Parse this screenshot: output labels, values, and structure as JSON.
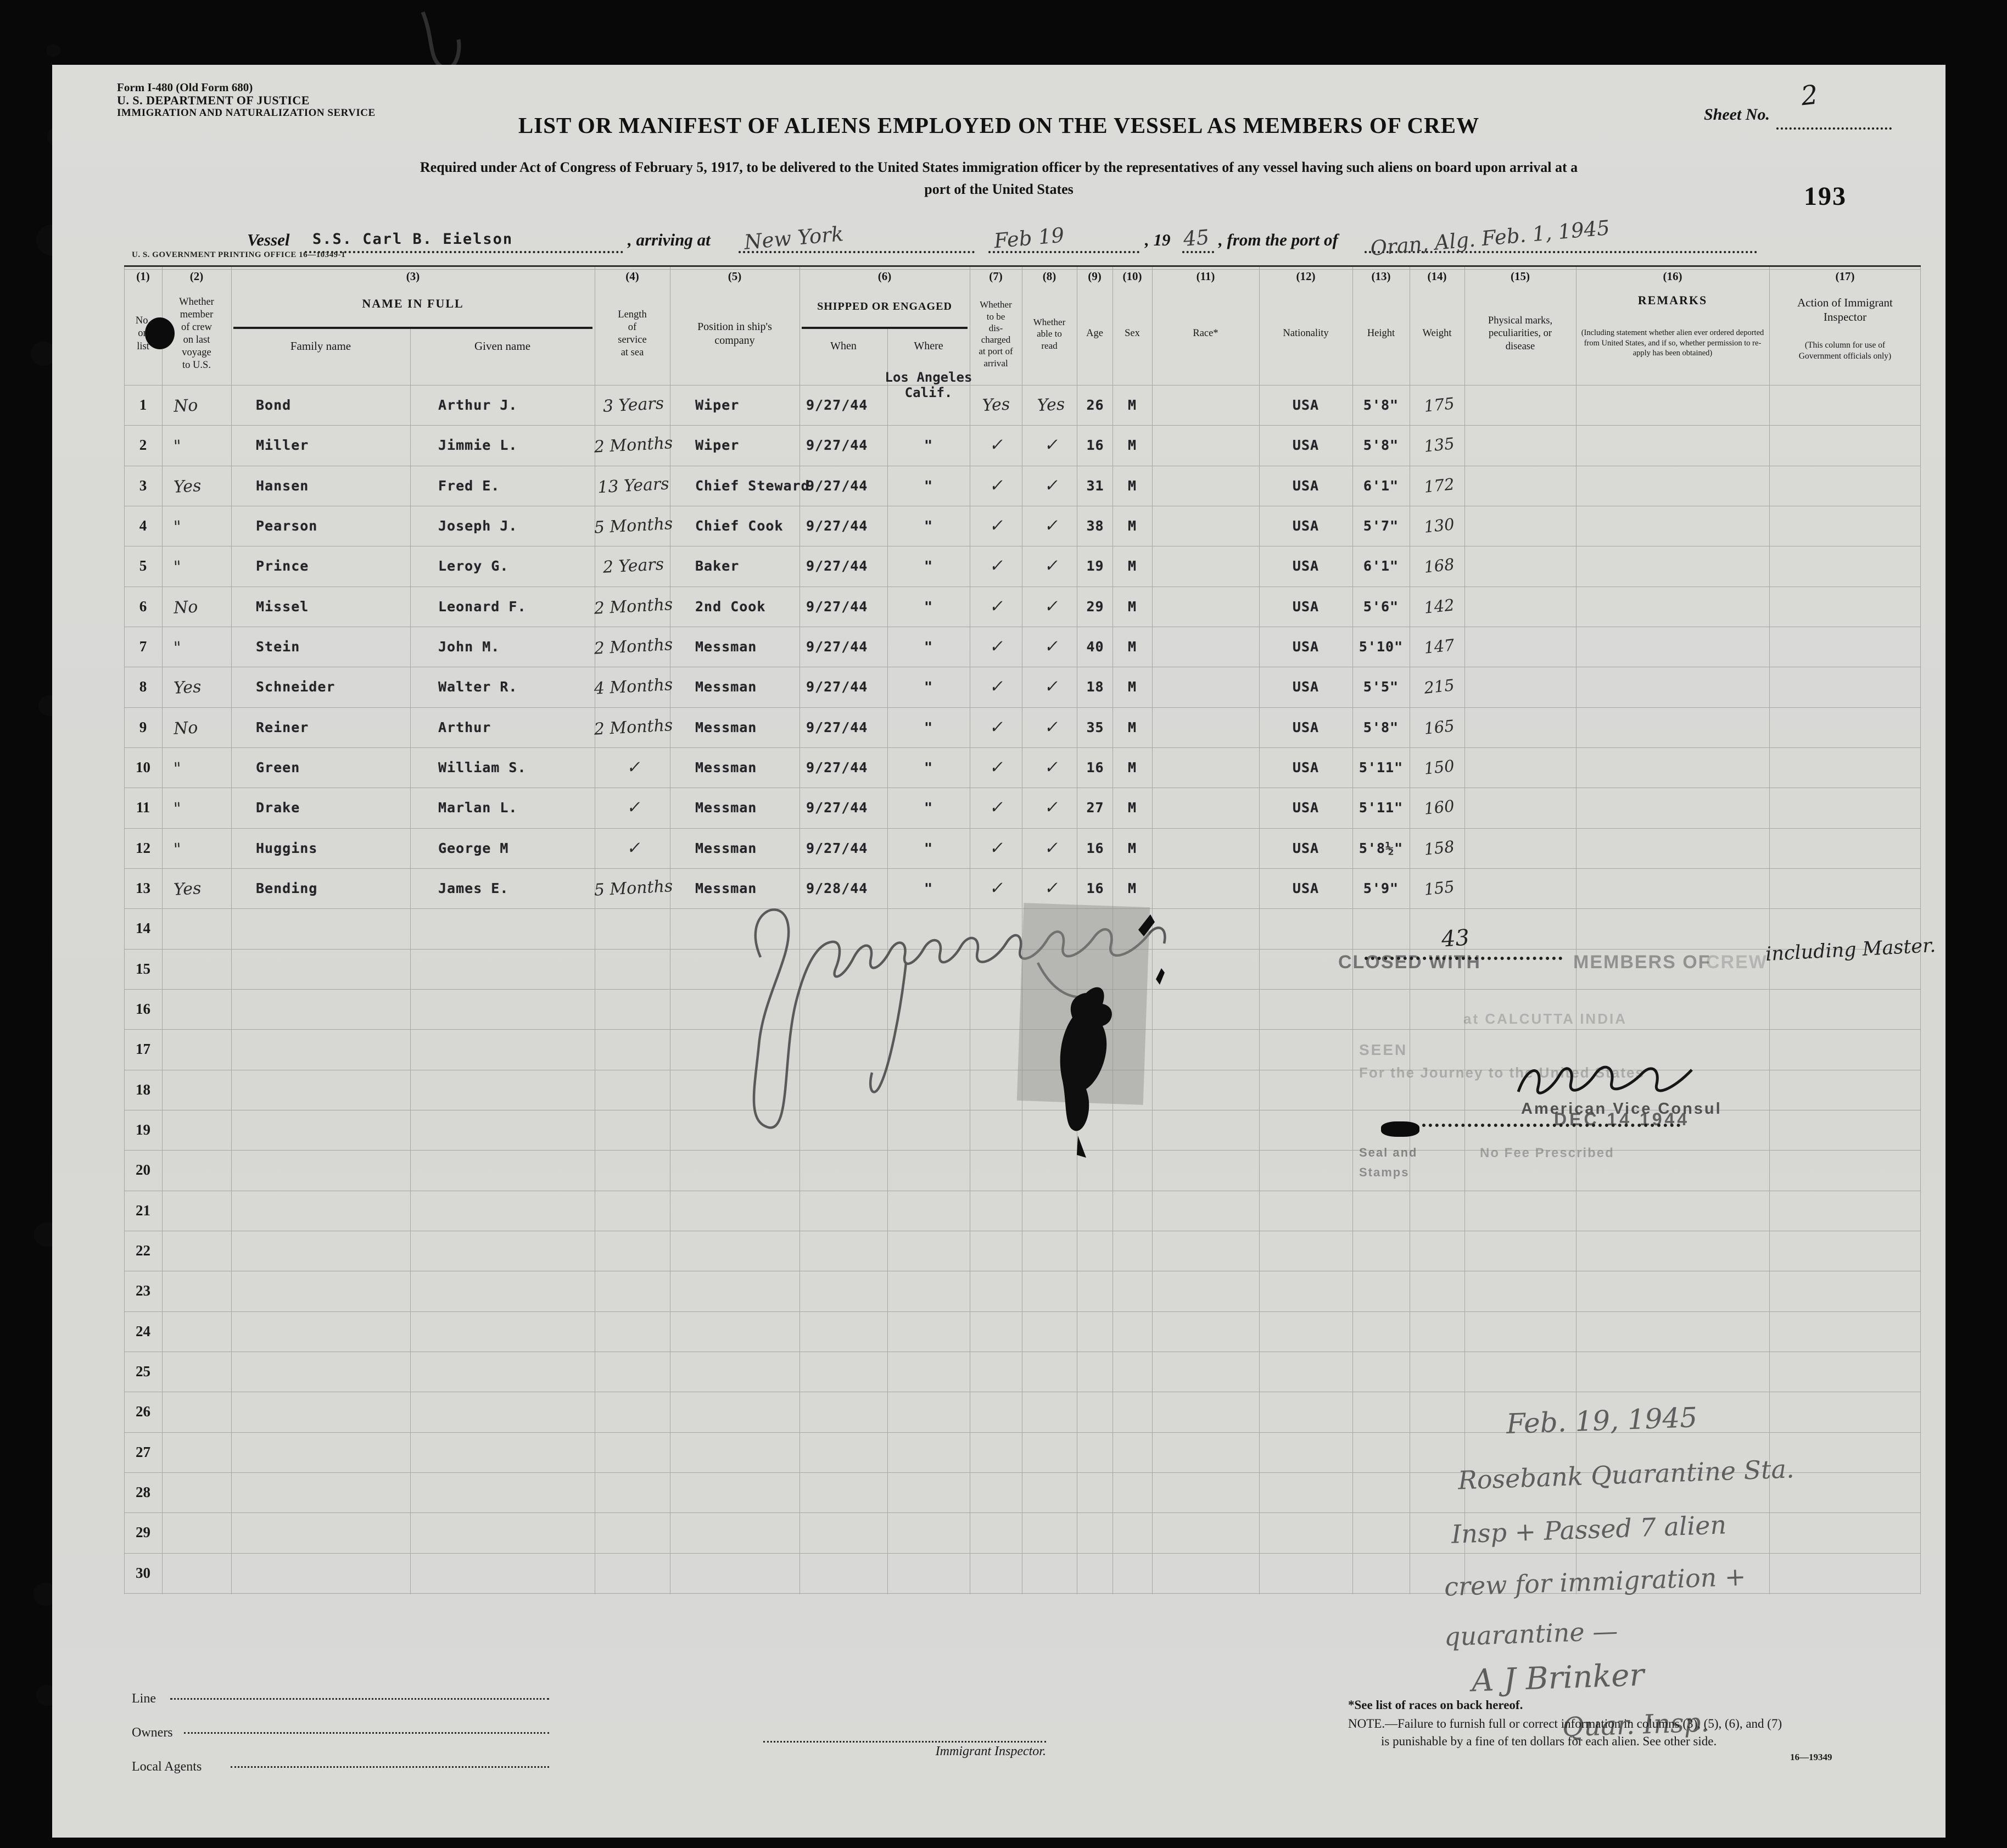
{
  "header": {
    "form_number": "Form I-480 (Old Form 680)",
    "department": "U. S. DEPARTMENT OF JUSTICE",
    "service": "IMMIGRATION AND NATURALIZATION SERVICE",
    "sheet_no_label": "Sheet No.",
    "sheet_no": "2",
    "page_stamp": "193",
    "title": "LIST OR MANIFEST OF ALIENS EMPLOYED ON THE VESSEL AS MEMBERS OF CREW",
    "subtitle_line1": "Required under Act of Congress of February 5, 1917, to be delivered to the United States immigration officer by the representatives of any vessel having such aliens on board upon arrival at a",
    "subtitle_line2": "port of the United States",
    "printing_office": "U. S. GOVERNMENT PRINTING OFFICE    16—10349-1"
  },
  "vessel": {
    "vessel_label": "Vessel",
    "vessel_name": "S.S. Carl B. Eielson",
    "arriving_label": ", arriving at",
    "arriving_value": "New York",
    "date_value": "Feb 19",
    "year_label": ", 19",
    "year_value": "45",
    "port_label": ", from the port of",
    "port_value": "Oran, Alg.  Feb. 1, 1945"
  },
  "table": {
    "col_nums": [
      "(1)",
      "(2)",
      "(3)",
      "(4)",
      "(5)",
      "(6)",
      "(7)",
      "(8)",
      "(9)",
      "(10)",
      "(11)",
      "(12)",
      "(13)",
      "(14)",
      "(15)",
      "(16)",
      "(17)"
    ],
    "headers": {
      "h1": "No.\non\nlist",
      "h2": "Whether\nmember\nof crew\non last\nvoyage\nto U.S.",
      "h3": "NAME IN FULL",
      "h3a": "Family name",
      "h3b": "Given name",
      "h4": "Length\nof\nservice\nat sea",
      "h5": "Position in ship's\ncompany",
      "h6": "SHIPPED OR ENGAGED",
      "h6a": "When",
      "h6b": "Where",
      "h7": "Whether\nto be\ndis-\ncharged\nat port of\narrival",
      "h8": "Whether\nable to\nread",
      "h9": "Age",
      "h10": "Sex",
      "h11": "Race*",
      "h12": "Nationality",
      "h13": "Height",
      "h14": "Weight",
      "h15": "Physical marks,\npeculiarities, or\ndisease",
      "h16": "REMARKS",
      "h16_note": "(Including statement whether alien ever ordered deported from United States, and if so, whether permission to re-apply has been obtained)",
      "h17": "Action of Immigrant\nInspector",
      "h17_note": "(This column for use of\nGovernment officials only)"
    },
    "where_first": "Los Angeles\nCalif.",
    "rows": [
      {
        "no": "1",
        "member": "No",
        "family": "Bond",
        "given": "Arthur J.",
        "service": "3 Years",
        "position": "Wiper",
        "when": "9/27/44",
        "where": "",
        "discharged": "Yes",
        "read": "Yes",
        "age": "26",
        "sex": "M",
        "nationality": "USA",
        "height": "5'8\"",
        "weight": "175"
      },
      {
        "no": "2",
        "member": "\"",
        "family": "Miller",
        "given": "Jimmie L.",
        "service": "2 Months",
        "position": "Wiper",
        "when": "9/27/44",
        "where": "\"",
        "discharged": "✓",
        "read": "✓",
        "age": "16",
        "sex": "M",
        "nationality": "USA",
        "height": "5'8\"",
        "weight": "135"
      },
      {
        "no": "3",
        "member": "Yes",
        "family": "Hansen",
        "given": "Fred E.",
        "service": "13 Years",
        "position": "Chief Steward",
        "when": "9/27/44",
        "where": "\"",
        "discharged": "✓",
        "read": "✓",
        "age": "31",
        "sex": "M",
        "nationality": "USA",
        "height": "6'1\"",
        "weight": "172"
      },
      {
        "no": "4",
        "member": "\"",
        "family": "Pearson",
        "given": "Joseph J.",
        "service": "5 Months",
        "position": "Chief Cook",
        "when": "9/27/44",
        "where": "\"",
        "discharged": "✓",
        "read": "✓",
        "age": "38",
        "sex": "M",
        "nationality": "USA",
        "height": "5'7\"",
        "weight": "130"
      },
      {
        "no": "5",
        "member": "\"",
        "family": "Prince",
        "given": "Leroy G.",
        "service": "2 Years",
        "position": "Baker",
        "when": "9/27/44",
        "where": "\"",
        "discharged": "✓",
        "read": "✓",
        "age": "19",
        "sex": "M",
        "nationality": "USA",
        "height": "6'1\"",
        "weight": "168"
      },
      {
        "no": "6",
        "member": "No",
        "family": "Missel",
        "given": "Leonard F.",
        "service": "2 Months",
        "position": "2nd Cook",
        "when": "9/27/44",
        "where": "\"",
        "discharged": "✓",
        "read": "✓",
        "age": "29",
        "sex": "M",
        "nationality": "USA",
        "height": "5'6\"",
        "weight": "142"
      },
      {
        "no": "7",
        "member": "\"",
        "family": "Stein",
        "given": "John M.",
        "service": "2 Months",
        "position": "Messman",
        "when": "9/27/44",
        "where": "\"",
        "discharged": "✓",
        "read": "✓",
        "age": "40",
        "sex": "M",
        "nationality": "USA",
        "height": "5'10\"",
        "weight": "147"
      },
      {
        "no": "8",
        "member": "Yes",
        "family": "Schneider",
        "given": "Walter R.",
        "service": "4 Months",
        "position": "Messman",
        "when": "9/27/44",
        "where": "\"",
        "discharged": "✓",
        "read": "✓",
        "age": "18",
        "sex": "M",
        "nationality": "USA",
        "height": "5'5\"",
        "weight": "215"
      },
      {
        "no": "9",
        "member": "No",
        "family": "Reiner",
        "given": "Arthur",
        "service": "2 Months",
        "position": "Messman",
        "when": "9/27/44",
        "where": "\"",
        "discharged": "✓",
        "read": "✓",
        "age": "35",
        "sex": "M",
        "nationality": "USA",
        "height": "5'8\"",
        "weight": "165"
      },
      {
        "no": "10",
        "member": "\"",
        "family": "Green",
        "given": "William S.",
        "service": "✓",
        "position": "Messman",
        "when": "9/27/44",
        "where": "\"",
        "discharged": "✓",
        "read": "✓",
        "age": "16",
        "sex": "M",
        "nationality": "USA",
        "height": "5'11\"",
        "weight": "150"
      },
      {
        "no": "11",
        "member": "\"",
        "family": "Drake",
        "given": "Marlan L.",
        "service": "✓",
        "position": "Messman",
        "when": "9/27/44",
        "where": "\"",
        "discharged": "✓",
        "read": "✓",
        "age": "27",
        "sex": "M",
        "nationality": "USA",
        "height": "5'11\"",
        "weight": "160"
      },
      {
        "no": "12",
        "member": "\"",
        "family": "Huggins",
        "given": "George M",
        "service": "✓",
        "position": "Messman",
        "when": "9/27/44",
        "where": "\"",
        "discharged": "✓",
        "read": "✓",
        "age": "16",
        "sex": "M",
        "nationality": "USA",
        "height": "5'8½\"",
        "weight": "158"
      },
      {
        "no": "13",
        "member": "Yes",
        "family": "Bending",
        "given": "James E.",
        "service": "5 Months",
        "position": "Messman",
        "when": "9/28/44",
        "where": "\"",
        "discharged": "✓",
        "read": "✓",
        "age": "16",
        "sex": "M",
        "nationality": "USA",
        "height": "5'9\"",
        "weight": "155"
      },
      {
        "no": "14"
      },
      {
        "no": "15"
      },
      {
        "no": "16"
      },
      {
        "no": "17"
      },
      {
        "no": "18"
      },
      {
        "no": "19"
      },
      {
        "no": "20"
      },
      {
        "no": "21"
      },
      {
        "no": "22"
      },
      {
        "no": "23"
      },
      {
        "no": "24"
      },
      {
        "no": "25"
      },
      {
        "no": "26"
      },
      {
        "no": "27"
      },
      {
        "no": "28"
      },
      {
        "no": "29"
      },
      {
        "no": "30"
      }
    ]
  },
  "stamps": {
    "closed_with_prefix": "CLOSED WITH",
    "closed_with_count": "43",
    "closed_with_suffix_a": "MEMBERS OF",
    "closed_with_suffix_b": "CREW",
    "closed_with_hand": "including Master.",
    "calcutta": "at CALCUTTA INDIA",
    "seen": "SEEN",
    "journey": "For the Journey to the United States",
    "vice_consul_title": "American Vice Consul",
    "date_stamp": "DEC 14 1944",
    "seal_line1": "Seal and",
    "seal_line2": "Stamps",
    "no_fee": "No Fee Prescribed"
  },
  "note": {
    "lines": [
      "Feb. 19, 1945",
      "Rosebank Quarantine Sta.",
      "Insp + Passed  7  alien",
      "crew for immigration +",
      "quarantine  —",
      "A J Brinker",
      "Quar. Insp."
    ]
  },
  "footer": {
    "line_label": "Line",
    "owners_label": "Owners",
    "agents_label": "Local Agents",
    "inspector_label": "Immigrant Inspector.",
    "races_note": "*See list of races on back hereof.",
    "note_line1": "NOTE.—Failure to furnish full or correct information in columns (3), (5), (6), and (7)",
    "note_line2": "is punishable by a fine of ten dollars for each alien.   See other side.",
    "print_code": "16—19349"
  }
}
